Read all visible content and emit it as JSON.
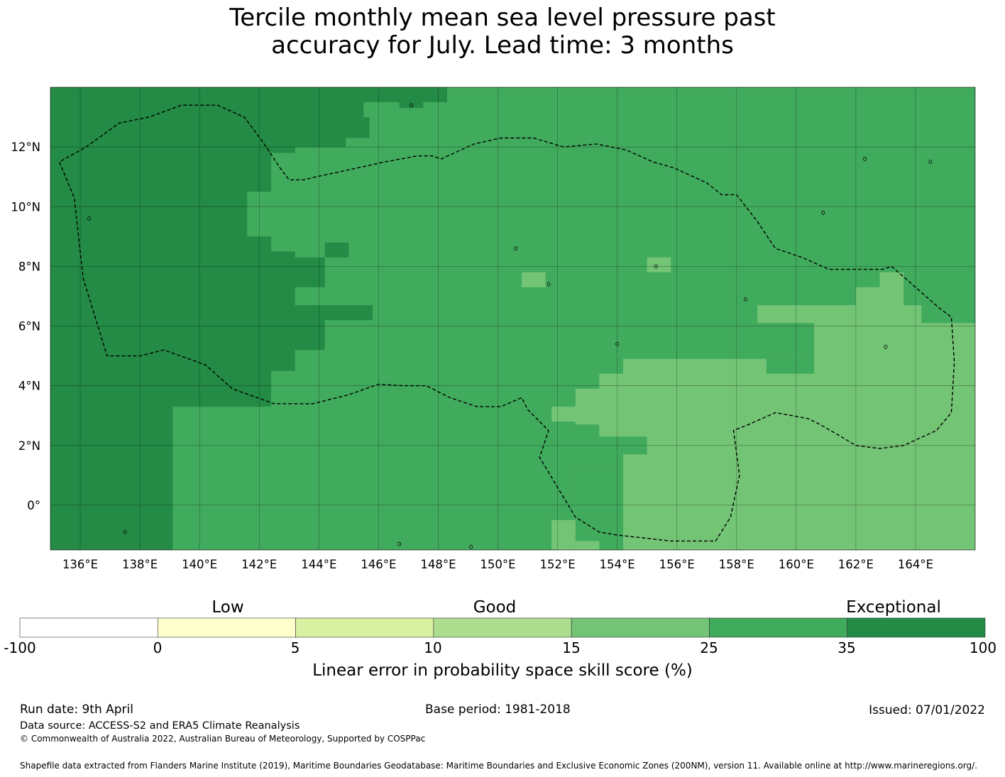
{
  "title": {
    "line1": "Tercile monthly mean sea level pressure past",
    "line2": "accuracy for July. Lead time: 3 months"
  },
  "map": {
    "lon_range": [
      135,
      166
    ],
    "lat_range": [
      -1.5,
      14
    ],
    "x_tick_labels": [
      "136°E",
      "138°E",
      "140°E",
      "142°E",
      "144°E",
      "146°E",
      "148°E",
      "150°E",
      "152°E",
      "154°E",
      "156°E",
      "158°E",
      "160°E",
      "162°E",
      "164°E"
    ],
    "y_tick_labels": [
      "12°N",
      "10°N",
      "8°N",
      "6°N",
      "4°N",
      "2°N",
      "0°"
    ],
    "category_colors": {
      "15-25": "#74c476",
      "25-35": "#41ab5d",
      "35-100": "#238b45"
    },
    "skill_regions": [
      {
        "category": "35-100",
        "description": "western region",
        "lonlat": [
          [
            135,
            14
          ],
          [
            148.3,
            14
          ],
          [
            148.3,
            13.5
          ],
          [
            147.5,
            13.5
          ],
          [
            147.5,
            13.3
          ],
          [
            146.7,
            13.3
          ],
          [
            146.7,
            13.5
          ],
          [
            145.5,
            13.5
          ],
          [
            145.5,
            13
          ],
          [
            145.7,
            13
          ],
          [
            145.7,
            12.3
          ],
          [
            144.9,
            12.3
          ],
          [
            144.9,
            12
          ],
          [
            143.2,
            12
          ],
          [
            143.2,
            11.8
          ],
          [
            142.4,
            11.8
          ],
          [
            142.4,
            10.5
          ],
          [
            141.6,
            10.5
          ],
          [
            141.6,
            10.2
          ],
          [
            141.6,
            9
          ],
          [
            142.4,
            9
          ],
          [
            142.4,
            8.5
          ],
          [
            143.2,
            8.5
          ],
          [
            143.2,
            8.3
          ],
          [
            144.2,
            8.3
          ],
          [
            144.2,
            7.3
          ],
          [
            143.2,
            7.3
          ],
          [
            143.2,
            6.7
          ],
          [
            145.8,
            6.7
          ],
          [
            145.8,
            6.2
          ],
          [
            144.2,
            6.2
          ],
          [
            144.2,
            5.2
          ],
          [
            143.2,
            5.2
          ],
          [
            143.2,
            4.5
          ],
          [
            142.4,
            4.5
          ],
          [
            142.4,
            3.3
          ],
          [
            139.1,
            3.3
          ],
          [
            139.1,
            -1.5
          ],
          [
            135,
            -1.5
          ]
        ]
      },
      {
        "category": "35-100",
        "description": "central patch",
        "lonlat": [
          [
            144.2,
            8.8
          ],
          [
            145.0,
            8.8
          ],
          [
            145.0,
            8.3
          ],
          [
            144.2,
            8.3
          ]
        ]
      },
      {
        "category": "15-25",
        "description": "eastern region",
        "lonlat": [
          [
            166,
            5.7
          ],
          [
            166,
            -1.5
          ],
          [
            154.2,
            -1.5
          ],
          [
            154.2,
            -0.5
          ],
          [
            152.6,
            -0.5
          ],
          [
            152.6,
            -1.5
          ],
          [
            151.8,
            -1.5
          ],
          [
            151.8,
            -0.5
          ],
          [
            152.6,
            -0.5
          ],
          [
            152.6,
            1.2
          ],
          [
            154.2,
            1.2
          ],
          [
            154.2,
            1.7
          ],
          [
            155.0,
            1.7
          ],
          [
            155.0,
            2.3
          ],
          [
            153.4,
            2.3
          ],
          [
            153.4,
            2.7
          ],
          [
            152.6,
            2.7
          ],
          [
            152.6,
            2.2
          ],
          [
            152.6,
            2.8
          ],
          [
            151.8,
            2.8
          ],
          [
            151.8,
            3.3
          ],
          [
            152.6,
            3.3
          ],
          [
            152.6,
            3.9
          ],
          [
            153.4,
            3.9
          ],
          [
            153.4,
            4.4
          ],
          [
            154.2,
            4.4
          ],
          [
            154.2,
            4.9
          ],
          [
            160.6,
            4.9
          ],
          [
            160.6,
            6.1
          ],
          [
            158.7,
            6.1
          ],
          [
            158.7,
            6.7
          ],
          [
            162.0,
            6.7
          ],
          [
            162.0,
            7.3
          ],
          [
            162.8,
            7.3
          ],
          [
            162.8,
            7.8
          ],
          [
            163.6,
            7.8
          ],
          [
            163.6,
            6.7
          ],
          [
            164.2,
            6.7
          ],
          [
            164.2,
            6.1
          ],
          [
            166,
            6.1
          ]
        ]
      },
      {
        "category": "25-35",
        "description": "notch inside eastern region",
        "lonlat": [
          [
            159.0,
            4.9
          ],
          [
            160.6,
            4.9
          ],
          [
            160.6,
            4.4
          ],
          [
            159.0,
            4.4
          ]
        ]
      },
      {
        "category": "25-35",
        "description": "south-east notch",
        "lonlat": [
          [
            153.4,
            1.7
          ],
          [
            154.2,
            1.7
          ],
          [
            154.2,
            2.2
          ],
          [
            153.4,
            2.2
          ]
        ]
      },
      {
        "category": "25-35",
        "description": "lower notch",
        "lonlat": [
          [
            152.6,
            1.2
          ],
          [
            154.2,
            1.2
          ],
          [
            154.2,
            -0.5
          ],
          [
            152.6,
            -0.5
          ]
        ]
      },
      {
        "category": "15-25",
        "description": "small patch near 8N",
        "lonlat": [
          [
            155.0,
            8.3
          ],
          [
            155.8,
            8.3
          ],
          [
            155.8,
            7.8
          ],
          [
            155.0,
            7.8
          ]
        ]
      },
      {
        "category": "15-25",
        "description": "small patch near 7N",
        "lonlat": [
          [
            150.8,
            7.8
          ],
          [
            151.6,
            7.8
          ],
          [
            151.6,
            7.3
          ],
          [
            150.8,
            7.3
          ]
        ]
      },
      {
        "category": "15-25",
        "description": "bottom patch",
        "lonlat": [
          [
            152.6,
            -1.2
          ],
          [
            153.4,
            -1.2
          ],
          [
            153.4,
            -1.5
          ],
          [
            152.6,
            -1.5
          ]
        ]
      }
    ],
    "eez_boundary_lonlat": [
      [
        135.3,
        11.5
      ],
      [
        135.8,
        10.3
      ],
      [
        136.1,
        7.6
      ],
      [
        136.9,
        5.0
      ],
      [
        138.0,
        5.0
      ],
      [
        138.8,
        5.2
      ],
      [
        140.2,
        4.7
      ],
      [
        141.1,
        3.9
      ],
      [
        142.5,
        3.4
      ],
      [
        143.8,
        3.4
      ],
      [
        145.0,
        3.7
      ],
      [
        146.0,
        4.05
      ],
      [
        146.8,
        4.0
      ],
      [
        147.6,
        4.0
      ],
      [
        148.4,
        3.6
      ],
      [
        149.3,
        3.3
      ],
      [
        150.1,
        3.3
      ],
      [
        150.8,
        3.6
      ],
      [
        151.0,
        3.2
      ],
      [
        151.7,
        2.5
      ],
      [
        151.4,
        1.6
      ],
      [
        152.0,
        0.6
      ],
      [
        152.6,
        -0.4
      ],
      [
        153.4,
        -0.9
      ],
      [
        154.0,
        -1.0
      ],
      [
        155.8,
        -1.2
      ],
      [
        157.3,
        -1.2
      ],
      [
        157.8,
        -0.4
      ],
      [
        158.1,
        1.0
      ],
      [
        157.9,
        2.5
      ],
      [
        158.4,
        2.7
      ],
      [
        159.3,
        3.1
      ],
      [
        160.4,
        2.9
      ],
      [
        160.8,
        2.7
      ],
      [
        161.5,
        2.3
      ],
      [
        162.0,
        2.0
      ],
      [
        162.8,
        1.9
      ],
      [
        163.6,
        2.0
      ],
      [
        164.7,
        2.5
      ],
      [
        165.2,
        3.1
      ],
      [
        165.3,
        4.8
      ],
      [
        165.2,
        6.3
      ],
      [
        164.8,
        6.6
      ],
      [
        164.0,
        7.3
      ],
      [
        163.2,
        8.0
      ],
      [
        162.9,
        7.9
      ],
      [
        161.1,
        7.9
      ],
      [
        160.2,
        8.3
      ],
      [
        159.3,
        8.6
      ],
      [
        158.7,
        9.5
      ],
      [
        158.0,
        10.4
      ],
      [
        157.5,
        10.4
      ],
      [
        157.0,
        10.8
      ],
      [
        155.9,
        11.3
      ],
      [
        155.2,
        11.5
      ],
      [
        154.3,
        11.9
      ],
      [
        153.3,
        12.1
      ],
      [
        152.2,
        12.0
      ],
      [
        151.2,
        12.3
      ],
      [
        150.1,
        12.3
      ],
      [
        149.2,
        12.1
      ],
      [
        148.1,
        11.6
      ],
      [
        147.8,
        11.7
      ],
      [
        147.3,
        11.7
      ],
      [
        146.2,
        11.5
      ],
      [
        145.3,
        11.3
      ],
      [
        143.9,
        11.0
      ],
      [
        143.5,
        10.9
      ],
      [
        143.0,
        10.9
      ],
      [
        142.7,
        11.3
      ],
      [
        142.1,
        12.2
      ],
      [
        141.5,
        13.0
      ],
      [
        140.6,
        13.4
      ],
      [
        139.4,
        13.4
      ],
      [
        138.3,
        13.0
      ],
      [
        137.3,
        12.8
      ],
      [
        136.2,
        12.0
      ],
      [
        135.3,
        11.5
      ]
    ]
  },
  "colorbar": {
    "category_labels": [
      "Low",
      "Good",
      "Exceptional"
    ],
    "bins": [
      {
        "from": -100,
        "to": 0,
        "color": "#ffffff"
      },
      {
        "from": 0,
        "to": 5,
        "color": "#ffffcc"
      },
      {
        "from": 5,
        "to": 10,
        "color": "#d9f0a3"
      },
      {
        "from": 10,
        "to": 15,
        "color": "#addd8e"
      },
      {
        "from": 15,
        "to": 25,
        "color": "#74c476"
      },
      {
        "from": 25,
        "to": 35,
        "color": "#41ab5d"
      },
      {
        "from": 35,
        "to": 100,
        "color": "#238b45"
      }
    ],
    "tick_labels": [
      "-100",
      "0",
      "5",
      "10",
      "15",
      "25",
      "35",
      "100"
    ],
    "label": "Linear error in probability space skill score (%)"
  },
  "footer": {
    "run_date": "Run date: 9th April",
    "base_period": "Base period: 1981-2018",
    "issued": "Issued: 07/01/2022",
    "data_source": "Data source: ACCESS-S2 and ERA5 Climate Reanalysis",
    "copyright": "© Commonwealth of Australia 2022, Australian Bureau of Meteorology, Supported by COSPPac",
    "shapefile": "Shapefile data extracted from Flanders Marine Institute (2019), Maritime Boundaries Geodatabase: Maritime Boundaries and Exclusive Economic Zones (200NM), version 11. Available online at http://www.marineregions.org/."
  }
}
